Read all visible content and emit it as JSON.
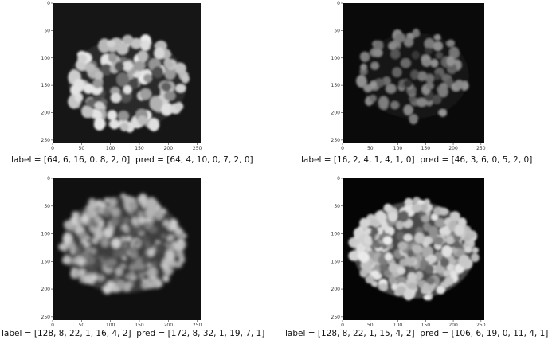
{
  "axis_ticks": {
    "x": [
      "0",
      "50",
      "100",
      "150",
      "200",
      "250"
    ],
    "y": [
      "0",
      "50",
      "100",
      "150",
      "200",
      "250"
    ]
  },
  "panels": [
    {
      "id": "top-left",
      "label_text": "label = [64, 6, 16, 0, 8, 2, 0]",
      "pred_text": "pred = [64, 4, 10, 0, 7, 2, 0]"
    },
    {
      "id": "top-right",
      "label_text": "label = [16, 2, 4, 1, 4, 1, 0]",
      "pred_text": "pred = [46, 3, 6, 0, 5, 2, 0]"
    },
    {
      "id": "bottom-left",
      "label_text": "label = [128, 8, 22, 1, 16, 4, 2]",
      "pred_text": "pred = [172, 8, 32, 1, 19, 7, 1]"
    },
    {
      "id": "bottom-right",
      "label_text": "label = [128, 8, 22, 1, 15, 4, 2]",
      "pred_text": "pred = [106, 6, 19, 0, 11, 4, 1]"
    }
  ],
  "colors": {
    "background": "#ffffff",
    "image_bg": "#060606",
    "cell_bright": "#e8e8e8",
    "cell_dim": "#8a8a8a"
  }
}
